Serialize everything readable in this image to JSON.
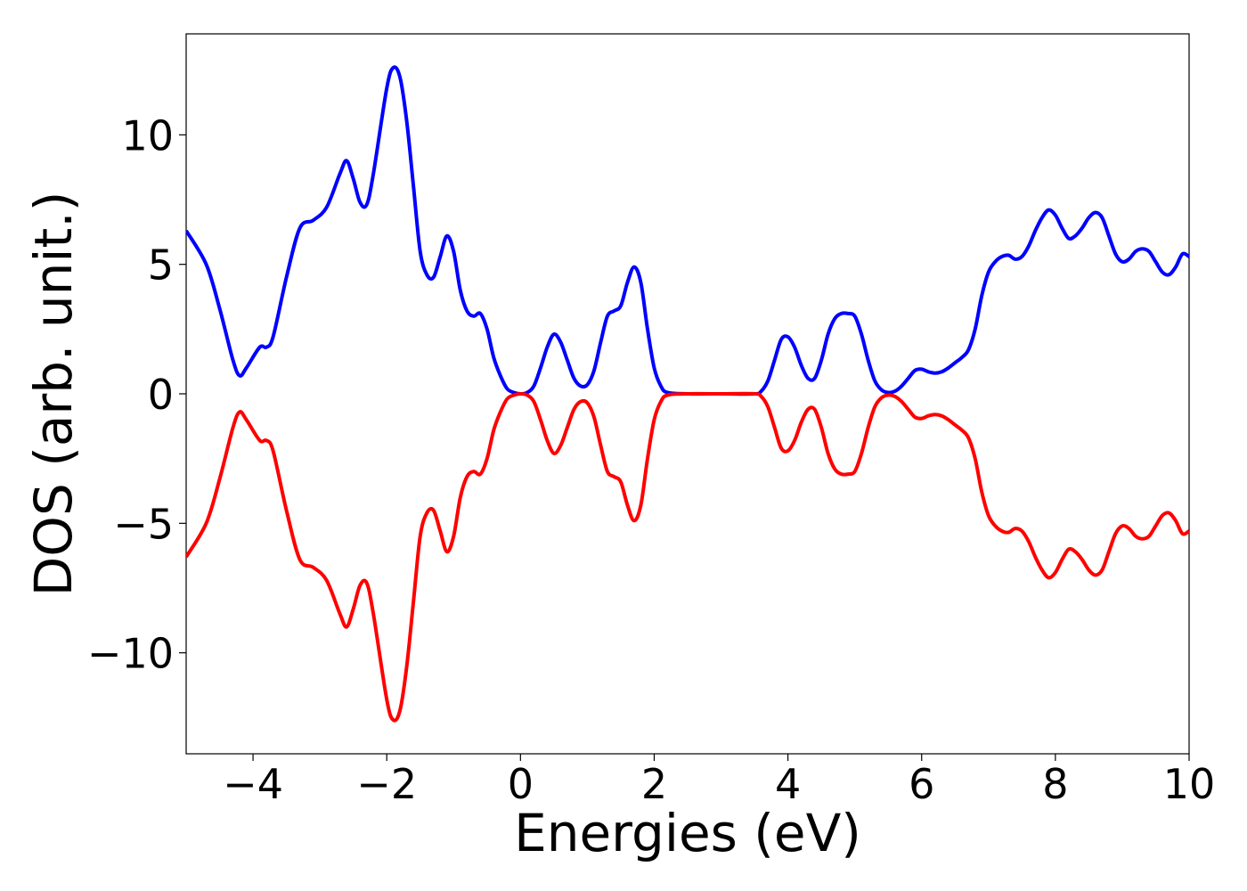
{
  "chart_data": {
    "type": "line",
    "xlabel": "Energies (eV)",
    "ylabel": "DOS (arb. unit.)",
    "x": [
      -5,
      -4.7,
      -4.5,
      -4.3,
      -4.2,
      -4.1,
      -3.9,
      -3.8,
      -3.7,
      -3.5,
      -3.3,
      -3.1,
      -2.9,
      -2.7,
      -2.6,
      -2.5,
      -2.4,
      -2.3,
      -2.2,
      -2.0,
      -1.9,
      -1.8,
      -1.7,
      -1.6,
      -1.5,
      -1.4,
      -1.3,
      -1.2,
      -1.1,
      -1.0,
      -0.9,
      -0.8,
      -0.7,
      -0.6,
      -0.5,
      -0.4,
      -0.3,
      -0.2,
      -0.1,
      0,
      0.1,
      0.2,
      0.3,
      0.4,
      0.5,
      0.6,
      0.7,
      0.8,
      0.9,
      1.0,
      1.1,
      1.2,
      1.3,
      1.4,
      1.5,
      1.6,
      1.7,
      1.8,
      1.9,
      2.0,
      2.1,
      2.2,
      2.5,
      3.0,
      3.5,
      3.6,
      3.7,
      3.8,
      3.9,
      4.0,
      4.1,
      4.2,
      4.3,
      4.4,
      4.5,
      4.6,
      4.7,
      4.8,
      4.9,
      5.0,
      5.1,
      5.2,
      5.3,
      5.4,
      5.5,
      5.6,
      5.7,
      5.8,
      5.9,
      6.0,
      6.1,
      6.2,
      6.3,
      6.4,
      6.5,
      6.6,
      6.7,
      6.8,
      6.9,
      7.0,
      7.1,
      7.2,
      7.3,
      7.4,
      7.5,
      7.6,
      7.7,
      7.8,
      7.9,
      8.0,
      8.1,
      8.2,
      8.3,
      8.4,
      8.5,
      8.6,
      8.7,
      8.8,
      8.9,
      9.0,
      9.1,
      9.2,
      9.3,
      9.4,
      9.5,
      9.6,
      9.7,
      9.8,
      9.9,
      10.0
    ],
    "series": [
      {
        "color": "#0000ff",
        "values": [
          6.3,
          5.0,
          3.3,
          1.3,
          0.7,
          1.0,
          1.8,
          1.8,
          2.2,
          4.5,
          6.4,
          6.7,
          7.2,
          8.5,
          9.0,
          8.3,
          7.4,
          7.3,
          8.5,
          11.8,
          12.6,
          12.2,
          10.5,
          8.0,
          5.5,
          4.6,
          4.5,
          5.3,
          6.1,
          5.5,
          4.0,
          3.2,
          3.0,
          3.1,
          2.5,
          1.4,
          0.7,
          0.2,
          0.05,
          0,
          0.05,
          0.3,
          1.0,
          1.8,
          2.3,
          2.0,
          1.3,
          0.6,
          0.3,
          0.35,
          0.9,
          2.0,
          3.0,
          3.2,
          3.4,
          4.3,
          4.9,
          4.3,
          2.5,
          1.0,
          0.3,
          0.05,
          0,
          0,
          0,
          0.1,
          0.5,
          1.3,
          2.1,
          2.2,
          1.8,
          1.1,
          0.6,
          0.6,
          1.3,
          2.3,
          2.9,
          3.1,
          3.1,
          3.0,
          2.3,
          1.3,
          0.5,
          0.15,
          0.05,
          0.1,
          0.3,
          0.6,
          0.9,
          0.95,
          0.85,
          0.8,
          0.85,
          1.0,
          1.2,
          1.4,
          1.7,
          2.5,
          3.8,
          4.7,
          5.1,
          5.3,
          5.35,
          5.2,
          5.3,
          5.7,
          6.3,
          6.8,
          7.1,
          6.9,
          6.4,
          6.0,
          6.1,
          6.4,
          6.8,
          7.0,
          6.8,
          6.1,
          5.4,
          5.1,
          5.2,
          5.5,
          5.6,
          5.5,
          5.1,
          4.7,
          4.6,
          4.9,
          5.4,
          5.3
        ]
      },
      {
        "color": "#ff0000",
        "values": [
          -6.3,
          -5.0,
          -3.3,
          -1.3,
          -0.7,
          -1.0,
          -1.8,
          -1.8,
          -2.2,
          -4.5,
          -6.4,
          -6.7,
          -7.2,
          -8.5,
          -9.0,
          -8.3,
          -7.4,
          -7.3,
          -8.5,
          -11.8,
          -12.6,
          -12.2,
          -10.5,
          -8.0,
          -5.5,
          -4.6,
          -4.5,
          -5.3,
          -6.1,
          -5.5,
          -4.0,
          -3.2,
          -3.0,
          -3.1,
          -2.5,
          -1.4,
          -0.7,
          -0.2,
          -0.05,
          0,
          -0.05,
          -0.3,
          -1.0,
          -1.8,
          -2.3,
          -2.0,
          -1.3,
          -0.6,
          -0.3,
          -0.35,
          -0.9,
          -2.0,
          -3.0,
          -3.2,
          -3.4,
          -4.3,
          -4.9,
          -4.3,
          -2.5,
          -1.0,
          -0.3,
          -0.05,
          0,
          0,
          0,
          -0.1,
          -0.5,
          -1.3,
          -2.1,
          -2.2,
          -1.8,
          -1.1,
          -0.6,
          -0.6,
          -1.3,
          -2.3,
          -2.9,
          -3.1,
          -3.1,
          -3.0,
          -2.3,
          -1.3,
          -0.5,
          -0.15,
          -0.05,
          -0.1,
          -0.3,
          -0.6,
          -0.9,
          -0.95,
          -0.85,
          -0.8,
          -0.85,
          -1.0,
          -1.2,
          -1.4,
          -1.7,
          -2.5,
          -3.8,
          -4.7,
          -5.1,
          -5.3,
          -5.35,
          -5.2,
          -5.3,
          -5.7,
          -6.3,
          -6.8,
          -7.1,
          -6.9,
          -6.4,
          -6.0,
          -6.1,
          -6.4,
          -6.8,
          -7.0,
          -6.8,
          -6.1,
          -5.4,
          -5.1,
          -5.2,
          -5.5,
          -5.6,
          -5.5,
          -5.1,
          -4.7,
          -4.6,
          -4.9,
          -5.4,
          -5.3
        ]
      }
    ],
    "xlim": [
      -5,
      10
    ],
    "xticks": [
      {
        "value": -4,
        "label": "−4"
      },
      {
        "value": -2,
        "label": "−2"
      },
      0,
      2,
      4,
      6,
      8,
      10
    ],
    "ylim": [
      -13.9,
      13.9
    ],
    "yticks": [
      {
        "value": -10,
        "label": "−10"
      },
      {
        "value": -5,
        "label": "−5"
      },
      0,
      5,
      10
    ],
    "grid": false
  }
}
